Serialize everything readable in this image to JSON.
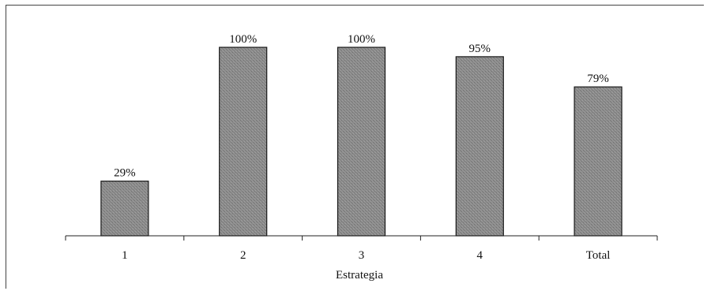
{
  "chart_data": {
    "type": "bar",
    "categories": [
      "1",
      "2",
      "3",
      "4",
      "Total"
    ],
    "values": [
      29,
      100,
      100,
      95,
      79
    ],
    "value_labels": [
      "29%",
      "100%",
      "100%",
      "95%",
      "79%"
    ],
    "title": "",
    "xlabel": "Estrategia",
    "ylabel": "",
    "ylim": [
      0,
      100
    ],
    "grid": false,
    "legend": "none",
    "bar_color": "#8a8a8a"
  }
}
